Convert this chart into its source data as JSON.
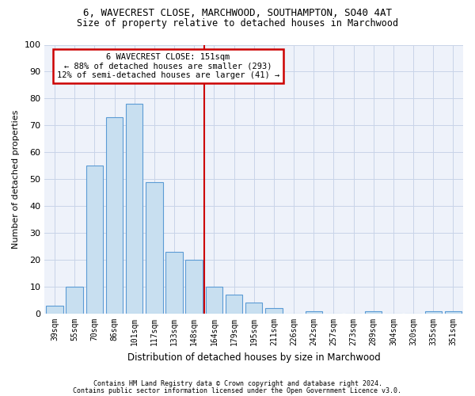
{
  "title_line1": "6, WAVECREST CLOSE, MARCHWOOD, SOUTHAMPTON, SO40 4AT",
  "title_line2": "Size of property relative to detached houses in Marchwood",
  "xlabel": "Distribution of detached houses by size in Marchwood",
  "ylabel": "Number of detached properties",
  "footnote1": "Contains HM Land Registry data © Crown copyright and database right 2024.",
  "footnote2": "Contains public sector information licensed under the Open Government Licence v3.0.",
  "categories": [
    "39sqm",
    "55sqm",
    "70sqm",
    "86sqm",
    "101sqm",
    "117sqm",
    "133sqm",
    "148sqm",
    "164sqm",
    "179sqm",
    "195sqm",
    "211sqm",
    "226sqm",
    "242sqm",
    "257sqm",
    "273sqm",
    "289sqm",
    "304sqm",
    "320sqm",
    "335sqm",
    "351sqm"
  ],
  "values": [
    3,
    10,
    55,
    73,
    78,
    49,
    23,
    20,
    10,
    7,
    4,
    2,
    0,
    1,
    0,
    0,
    1,
    0,
    0,
    1,
    1
  ],
  "bar_color": "#c8dff0",
  "bar_edge_color": "#5b9bd5",
  "grid_color": "#c8d4e8",
  "background_color": "#eef2fa",
  "vline_x": 7.5,
  "vline_color": "#cc0000",
  "property_size": "151sqm",
  "property_name": "6 WAVECREST CLOSE",
  "pct_smaller": 88,
  "num_smaller": 293,
  "pct_larger": 12,
  "num_larger": 41,
  "annotation_box_color": "#cc0000",
  "ylim": [
    0,
    100
  ],
  "yticks": [
    0,
    10,
    20,
    30,
    40,
    50,
    60,
    70,
    80,
    90,
    100
  ]
}
